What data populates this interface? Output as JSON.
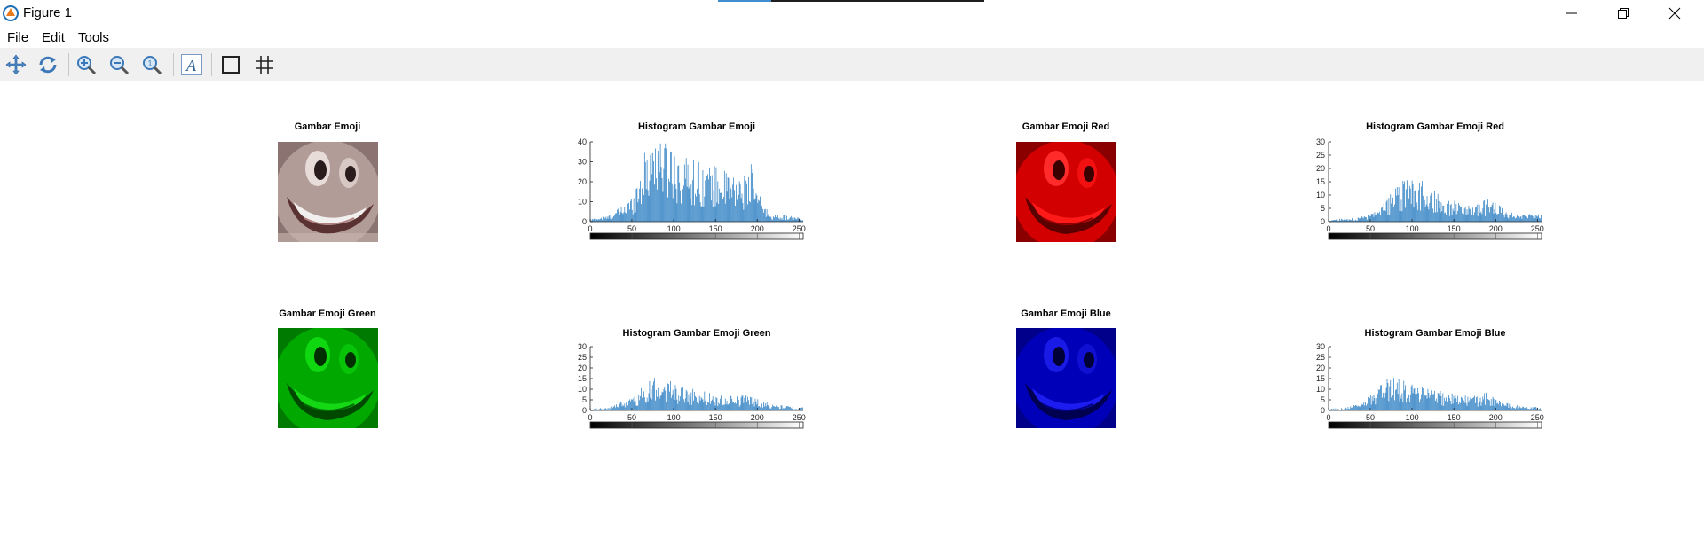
{
  "window": {
    "title": "Figure 1",
    "icon": "matlab-icon"
  },
  "menu": [
    {
      "key": "F",
      "rest": "ile"
    },
    {
      "key": "E",
      "rest": "dit"
    },
    {
      "key": "T",
      "rest": "ools"
    }
  ],
  "toolbar": [
    "pan-icon",
    "rotate-icon",
    "zoom-in-icon",
    "zoom-out-icon",
    "zoom-reset-icon",
    "insert-text-icon",
    "box-icon",
    "grid-icon"
  ],
  "plots": {
    "img1_title": "Gambar Emoji",
    "img2_title": "Gambar Emoji Red",
    "img3_title": "Gambar Emoji Green",
    "img4_title": "Gambar Emoji Blue",
    "h1_title": "Histogram Gambar Emoji",
    "h2_title": "Histogram Gambar Emoji Red",
    "h3_title": "Histogram Gambar Emoji Green",
    "h4_title": "Histogram Gambar Emoji Blue"
  },
  "colors": {
    "bar": "#2f80c3",
    "red": "#dd0000",
    "green": "#00b000",
    "blue": "#0000c8"
  },
  "chart_data": [
    {
      "type": "bar",
      "title": "Histogram Gambar Emoji",
      "xlim": [
        0,
        255
      ],
      "ylim": [
        0,
        40
      ],
      "xticks": [
        0,
        50,
        100,
        150,
        200,
        250
      ],
      "yticks": [
        0,
        10,
        20,
        30,
        40
      ],
      "profile": [
        [
          0,
          1
        ],
        [
          20,
          2
        ],
        [
          35,
          5
        ],
        [
          50,
          9
        ],
        [
          60,
          19
        ],
        [
          68,
          27
        ],
        [
          75,
          34
        ],
        [
          85,
          33
        ],
        [
          95,
          29
        ],
        [
          110,
          24
        ],
        [
          125,
          22
        ],
        [
          140,
          20
        ],
        [
          155,
          19
        ],
        [
          170,
          16
        ],
        [
          185,
          16
        ],
        [
          193,
          21
        ],
        [
          200,
          11
        ],
        [
          215,
          3
        ],
        [
          240,
          2
        ],
        [
          255,
          1
        ]
      ]
    },
    {
      "type": "bar",
      "title": "Histogram Gambar Emoji Red",
      "xlim": [
        0,
        255
      ],
      "ylim": [
        0,
        30
      ],
      "xticks": [
        0,
        50,
        100,
        150,
        200,
        250
      ],
      "yticks": [
        0,
        5,
        10,
        15,
        20,
        25,
        30
      ],
      "profile": [
        [
          0,
          0.5
        ],
        [
          30,
          1
        ],
        [
          50,
          2
        ],
        [
          60,
          3
        ],
        [
          70,
          6
        ],
        [
          80,
          9
        ],
        [
          90,
          11
        ],
        [
          100,
          12
        ],
        [
          110,
          11
        ],
        [
          125,
          9
        ],
        [
          140,
          6
        ],
        [
          160,
          5
        ],
        [
          180,
          5
        ],
        [
          190,
          6
        ],
        [
          200,
          5
        ],
        [
          215,
          3
        ],
        [
          235,
          2
        ],
        [
          255,
          2
        ]
      ]
    },
    {
      "type": "bar",
      "title": "Histogram Gambar Emoji Green",
      "xlim": [
        0,
        255
      ],
      "ylim": [
        0,
        30
      ],
      "xticks": [
        0,
        50,
        100,
        150,
        200,
        250
      ],
      "yticks": [
        0,
        5,
        10,
        15,
        20,
        25,
        30
      ],
      "profile": [
        [
          0,
          0.5
        ],
        [
          20,
          1
        ],
        [
          40,
          3
        ],
        [
          55,
          5
        ],
        [
          65,
          9
        ],
        [
          75,
          11
        ],
        [
          85,
          11
        ],
        [
          95,
          10
        ],
        [
          110,
          8
        ],
        [
          125,
          7
        ],
        [
          140,
          6
        ],
        [
          160,
          5
        ],
        [
          180,
          5
        ],
        [
          190,
          6
        ],
        [
          200,
          4
        ],
        [
          220,
          2
        ],
        [
          255,
          1
        ]
      ]
    },
    {
      "type": "bar",
      "title": "Histogram Gambar Emoji Blue",
      "xlim": [
        0,
        255
      ],
      "ylim": [
        0,
        30
      ],
      "xticks": [
        0,
        50,
        100,
        150,
        200,
        250
      ],
      "yticks": [
        0,
        5,
        10,
        15,
        20,
        25,
        30
      ],
      "profile": [
        [
          0,
          0.5
        ],
        [
          20,
          1
        ],
        [
          40,
          3
        ],
        [
          55,
          6
        ],
        [
          65,
          10
        ],
        [
          75,
          11
        ],
        [
          85,
          11
        ],
        [
          95,
          10
        ],
        [
          110,
          8
        ],
        [
          125,
          7
        ],
        [
          140,
          6
        ],
        [
          160,
          5
        ],
        [
          180,
          5
        ],
        [
          190,
          6
        ],
        [
          200,
          4
        ],
        [
          220,
          2
        ],
        [
          255,
          1
        ]
      ]
    }
  ]
}
